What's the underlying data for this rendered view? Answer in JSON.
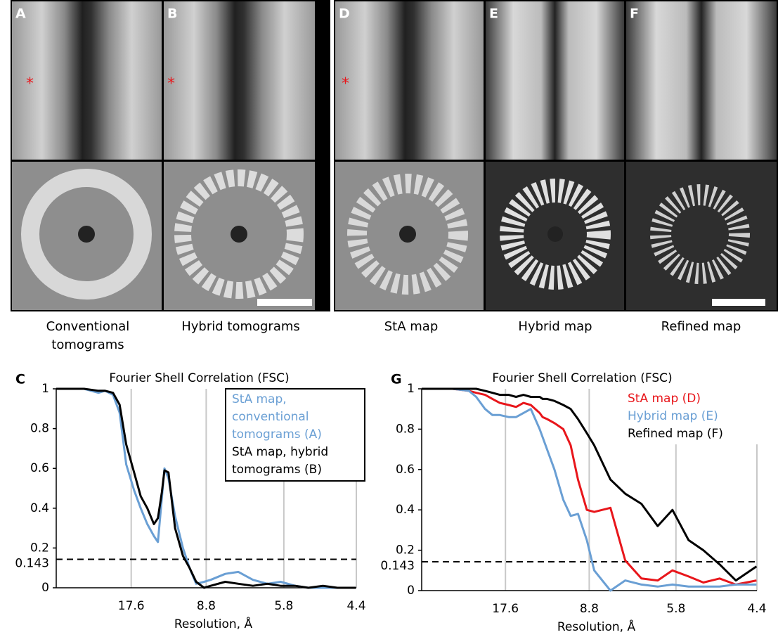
{
  "panels": [
    {
      "letter": "A",
      "caption": "Conventional tomograms"
    },
    {
      "letter": "B",
      "caption": "Hybrid tomograms"
    },
    {
      "letter": "D",
      "caption": "StA map"
    },
    {
      "letter": "E",
      "caption": "Hybrid map"
    },
    {
      "letter": "F",
      "caption": "Refined map"
    }
  ],
  "chart_data": [
    {
      "type": "line",
      "panel_label": "C",
      "title": "Fourier Shell Correlation (FSC)",
      "x_label": "Resolution, Å",
      "x": [
        0,
        0.011,
        0.021,
        0.032,
        0.037,
        0.043,
        0.048,
        0.053,
        0.059,
        0.064,
        0.069,
        0.074,
        0.077,
        0.08,
        0.082,
        0.085,
        0.09,
        0.096,
        0.101,
        0.106,
        0.112,
        0.117,
        0.128,
        0.138,
        0.149,
        0.16,
        0.17,
        0.181,
        0.191,
        0.202,
        0.213,
        0.227
      ],
      "series": [
        {
          "name": "StA map, conventional tomograms (A)",
          "color": "#6a9fd4",
          "values": [
            1,
            1,
            1,
            0.98,
            0.99,
            0.97,
            0.88,
            0.62,
            0.49,
            0.4,
            0.32,
            0.26,
            0.23,
            0.45,
            0.6,
            0.55,
            0.36,
            0.2,
            0.1,
            0.02,
            0.03,
            0.04,
            0.07,
            0.08,
            0.04,
            0.02,
            0.03,
            0.01,
            0,
            0,
            0,
            0
          ]
        },
        {
          "name": "StA map, hybrid tomograms (B)",
          "color": "#000000",
          "values": [
            1,
            1,
            1,
            0.99,
            0.99,
            0.98,
            0.92,
            0.72,
            0.58,
            0.46,
            0.4,
            0.32,
            0.35,
            0.48,
            0.59,
            0.58,
            0.3,
            0.16,
            0.1,
            0.03,
            0,
            0.01,
            0.03,
            0.02,
            0.01,
            0.02,
            0.01,
            0.01,
            0,
            0.01,
            0,
            0
          ]
        }
      ],
      "xlim": [
        0,
        0.2273
      ],
      "xticks": [
        {
          "value": 0.0568,
          "label": "17.6"
        },
        {
          "value": 0.1136,
          "label": "8.8"
        },
        {
          "value": 0.1724,
          "label": "5.8"
        },
        {
          "value": 0.2273,
          "label": "4.4"
        }
      ],
      "ylim": [
        0,
        1
      ],
      "yticks": [
        0,
        0.2,
        0.4,
        0.6,
        0.8,
        1
      ],
      "threshold": 0.143,
      "grid": "x",
      "legend": "upper right",
      "legend_frame": true
    },
    {
      "type": "line",
      "panel_label": "G",
      "title": "Fourier Shell Correlation (FSC)",
      "x_label": "Resolution, Å",
      "x": [
        0,
        0.011,
        0.021,
        0.032,
        0.037,
        0.043,
        0.048,
        0.053,
        0.059,
        0.064,
        0.069,
        0.074,
        0.077,
        0.08,
        0.082,
        0.085,
        0.09,
        0.096,
        0.101,
        0.106,
        0.112,
        0.117,
        0.128,
        0.138,
        0.149,
        0.16,
        0.17,
        0.181,
        0.191,
        0.202,
        0.213,
        0.227
      ],
      "series": [
        {
          "name": "StA map (D)",
          "color": "#e8161b",
          "values": [
            1,
            1,
            1,
            0.99,
            0.98,
            0.97,
            0.95,
            0.93,
            0.92,
            0.91,
            0.93,
            0.92,
            0.9,
            0.88,
            0.86,
            0.85,
            0.83,
            0.8,
            0.72,
            0.55,
            0.4,
            0.39,
            0.41,
            0.15,
            0.06,
            0.05,
            0.1,
            0.07,
            0.04,
            0.06,
            0.03,
            0.05
          ]
        },
        {
          "name": "Hybrid map (E)",
          "color": "#6a9fd4",
          "values": [
            1,
            1,
            1,
            0.99,
            0.96,
            0.9,
            0.87,
            0.87,
            0.86,
            0.86,
            0.88,
            0.9,
            0.85,
            0.8,
            0.76,
            0.7,
            0.6,
            0.45,
            0.37,
            0.38,
            0.25,
            0.1,
            0,
            0.05,
            0.03,
            0.02,
            0.03,
            0.02,
            0.02,
            0.02,
            0.03,
            0.03
          ]
        },
        {
          "name": "Refined map (F)",
          "color": "#000000",
          "values": [
            1,
            1,
            1,
            1,
            1,
            0.99,
            0.98,
            0.97,
            0.97,
            0.96,
            0.97,
            0.96,
            0.96,
            0.96,
            0.95,
            0.95,
            0.94,
            0.92,
            0.9,
            0.85,
            0.78,
            0.72,
            0.55,
            0.48,
            0.43,
            0.32,
            0.4,
            0.25,
            0.2,
            0.13,
            0.05,
            0.12
          ]
        }
      ],
      "xlim": [
        0,
        0.2273
      ],
      "xticks": [
        {
          "value": 0.0568,
          "label": "17.6"
        },
        {
          "value": 0.1136,
          "label": "8.8"
        },
        {
          "value": 0.1724,
          "label": "5.8"
        },
        {
          "value": 0.2273,
          "label": "4.4"
        }
      ],
      "ylim": [
        0,
        1
      ],
      "yticks": [
        0,
        0.2,
        0.4,
        0.6,
        0.8,
        1
      ],
      "threshold": 0.143,
      "grid": "x",
      "legend": "upper right",
      "legend_frame": false
    }
  ]
}
